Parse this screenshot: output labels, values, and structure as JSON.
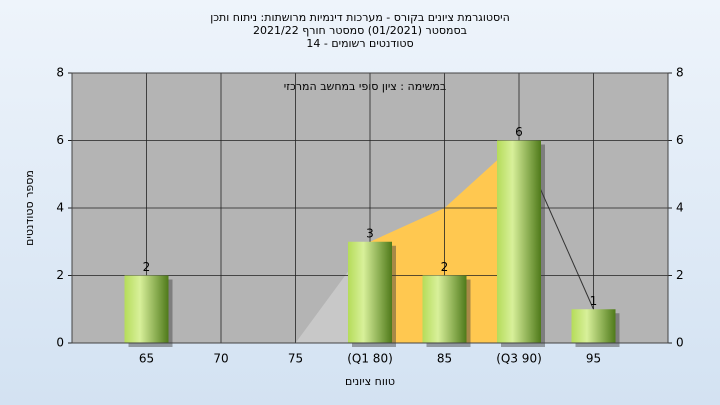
{
  "chart_data": {
    "type": "bar",
    "title": [
      "היסטוגרמת ציונים בקורס - מערכות דינמיות מרושתות: ניתוח ותכן",
      "בסמסטר  (01/2021)  סמסטר חורף 2021/22",
      "סטודנטים רשומים - 14"
    ],
    "annotation": "במשימה : ציון סופי במחשב המרכזי",
    "x_label": "טווח ציונים",
    "y_label": "מספר סטודנטים",
    "categories": [
      "65",
      "70",
      "75",
      "(Q1 80)",
      "85",
      "(Q3 90)",
      "95"
    ],
    "values": [
      2,
      0,
      0,
      3,
      2,
      6,
      1
    ],
    "color": "#9acd32",
    "area": {
      "values": [
        null,
        null,
        0,
        3,
        4,
        6,
        1
      ],
      "fill_colors": [
        null,
        null,
        "#c8c8c8",
        "#ffc850",
        "#ffc850",
        null
      ]
    },
    "ylim": [
      0,
      8
    ],
    "yticks": [
      0,
      2,
      4,
      6,
      8
    ],
    "grid": true
  }
}
